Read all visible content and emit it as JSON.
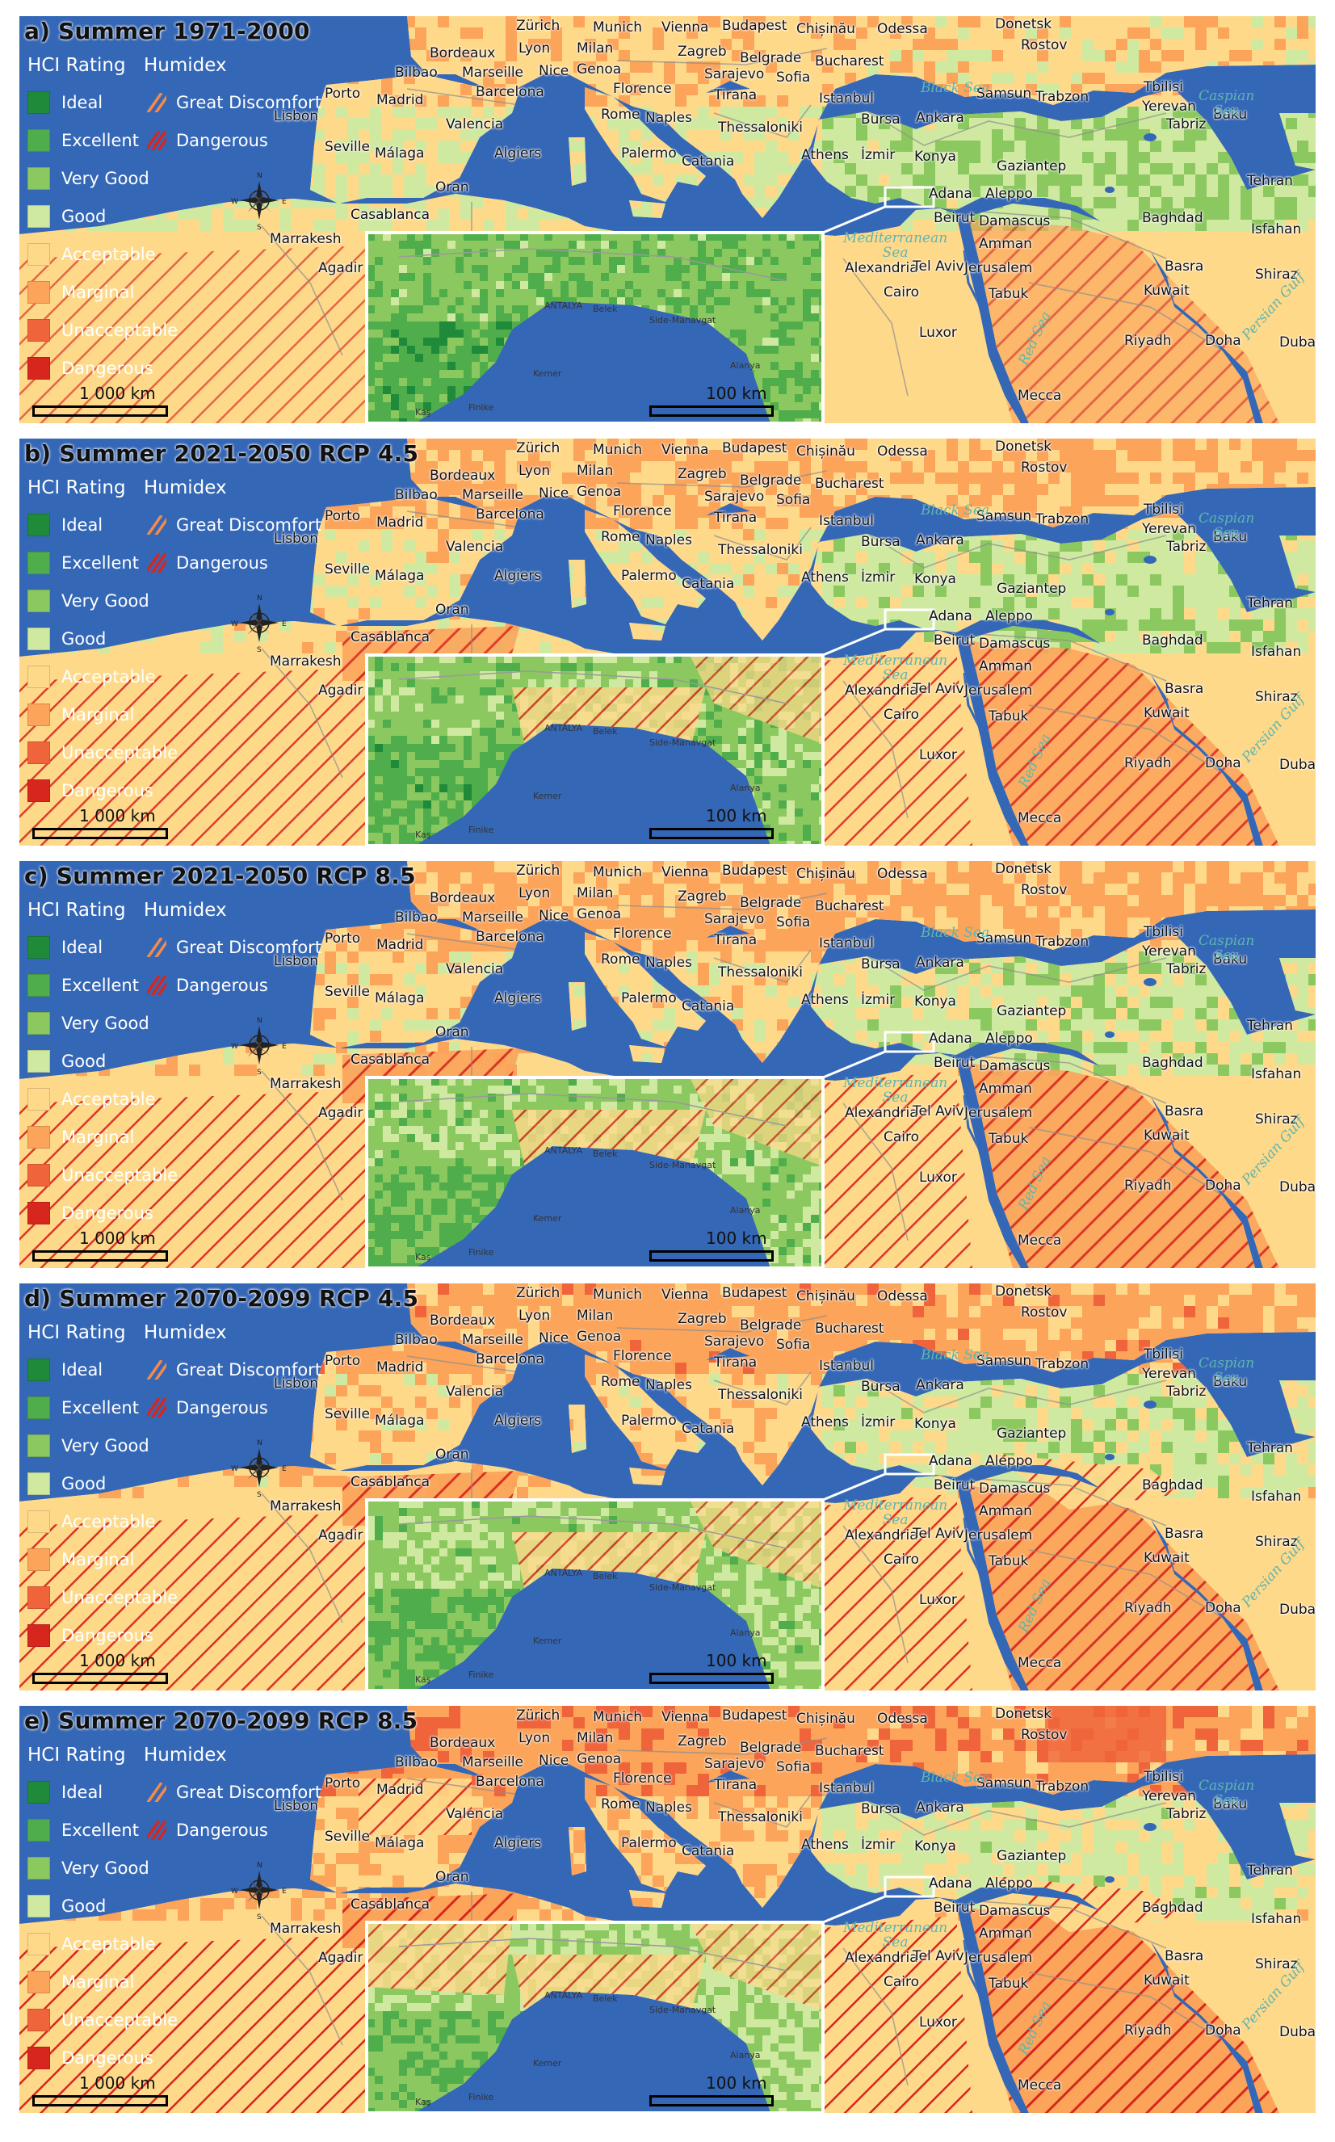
{
  "legend": {
    "hci_heading": "HCI Rating",
    "humidex_heading": "Humidex",
    "hci_categories": [
      {
        "label": "Ideal",
        "color": "#1e8a3a"
      },
      {
        "label": "Excellent",
        "color": "#4fae4b"
      },
      {
        "label": "Very Good",
        "color": "#8cc860"
      },
      {
        "label": "Good",
        "color": "#cfe9a0"
      },
      {
        "label": "Acceptable",
        "color": "#ffd98a"
      },
      {
        "label": "Marginal",
        "color": "#fba45a"
      },
      {
        "label": "Unacceptable",
        "color": "#f0643c"
      },
      {
        "label": "Dangerous",
        "color": "#d7261e"
      }
    ],
    "humidex_categories": [
      {
        "label": "Great Discomfort",
        "color": "#f58a4a",
        "icon": "hatch-wide-icon"
      },
      {
        "label": "Dangerous",
        "color": "#d7261e",
        "icon": "hatch-dense-icon"
      }
    ]
  },
  "scale": {
    "main": "1 000  km",
    "inset": "100  km"
  },
  "compass": {
    "n": "N",
    "s": "S",
    "e": "E",
    "w": "W"
  },
  "places": [
    "Zürich",
    "Munich",
    "Vienna",
    "Budapest",
    "Chișinău",
    "Odessa",
    "Donetsk",
    "Rostov",
    "Bordeaux",
    "Lyon",
    "Milan",
    "Zagreb",
    "Belgrade",
    "Bucharest",
    "Bilbao",
    "Marseille",
    "Nice",
    "Genoa",
    "Sarajevo",
    "Sofia",
    "Porto",
    "Madrid",
    "Barcelona",
    "Florence",
    "Tirana",
    "Istanbul",
    "Samsun",
    "Trabzon",
    "Tbilisi",
    "Yerevan",
    "Baku",
    "Lisbon",
    "Valencia",
    "Rome",
    "Naples",
    "Thessaloniki",
    "Bursa",
    "Ankara",
    "Tabriz",
    "Seville",
    "Málaga",
    "Algiers",
    "Palermo",
    "Catania",
    "Athens",
    "İzmir",
    "Konya",
    "Gaziantep",
    "Tehran",
    "Oran",
    "Adana",
    "Aleppo",
    "Casablanca",
    "Beirut",
    "Damascus",
    "Baghdad",
    "Isfahan",
    "Marrakesh",
    "Amman",
    "Agadir",
    "Alexandria",
    "Tel Aviv",
    "Jerusalem",
    "Basra",
    "Shiraz",
    "Cairo",
    "Tabuk",
    "Kuwait",
    "Luxor",
    "Riyadh",
    "Doha",
    "Dubai",
    "Mecca"
  ],
  "seas": [
    "Black Sea",
    "Caspian Sea",
    "Mediterranean Sea",
    "Red Sea",
    "Persian Gulf"
  ],
  "inset_places": [
    "ANTALYA",
    "Belek",
    "Side-Manavgat",
    "Kemer",
    "Alanya",
    "Kaş",
    "Finike"
  ],
  "panels": [
    {
      "title": "a) Summer 1971-2000",
      "heat": 0,
      "hatch": 0.2
    },
    {
      "title": "b) Summer 2021-2050 RCP 4.5",
      "heat": 1,
      "hatch": 0.7
    },
    {
      "title": "c) Summer 2021-2050 RCP 8.5",
      "heat": 1.4,
      "hatch": 0.8
    },
    {
      "title": "d) Summer 2070-2099 RCP 4.5",
      "heat": 1.8,
      "hatch": 0.85
    },
    {
      "title": "e) Summer 2070-2099 RCP 8.5",
      "heat": 2.6,
      "hatch": 1
    }
  ]
}
